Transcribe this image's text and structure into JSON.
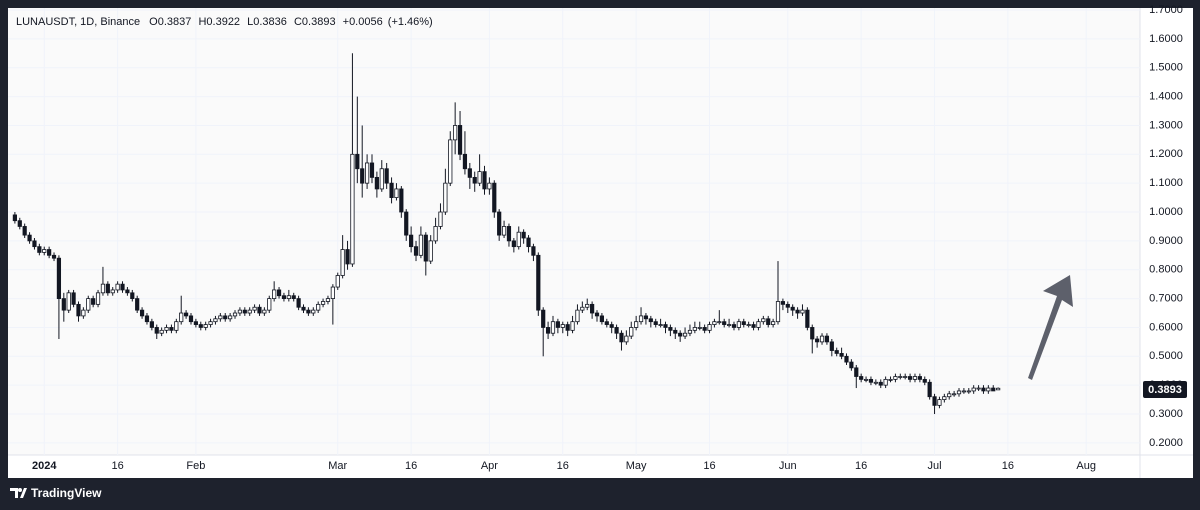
{
  "chart_data": {
    "type": "candlestick",
    "symbol": "LUNAUSDT, 1D, Binance",
    "ohlc_labels": [
      "O",
      "H",
      "L",
      "C"
    ],
    "change": "+0.0056",
    "change_pct": "(+1.46%)",
    "brand": "TradingView",
    "up_color": "#ffffff",
    "down_color": "#131722",
    "border_color": "#131722",
    "xlim": [
      -7,
      224
    ],
    "xticks": [
      {
        "value": 0,
        "label": "2024"
      },
      {
        "value": 15,
        "label": "16"
      },
      {
        "value": 31,
        "label": "Feb"
      },
      {
        "value": 60,
        "label": "Mar"
      },
      {
        "value": 75,
        "label": "16"
      },
      {
        "value": 91,
        "label": "Apr"
      },
      {
        "value": 106,
        "label": "16"
      },
      {
        "value": 121,
        "label": "May"
      },
      {
        "value": 136,
        "label": "16"
      },
      {
        "value": 152,
        "label": "Jun"
      },
      {
        "value": 167,
        "label": "16"
      },
      {
        "value": 182,
        "label": "Jul"
      },
      {
        "value": 197,
        "label": "16"
      },
      {
        "value": 213,
        "label": "Aug"
      }
    ],
    "ylim": [
      0.158,
      1.707
    ],
    "yticks": [
      {
        "value": 0.2,
        "label": "0.2000"
      },
      {
        "value": 0.3,
        "label": "0.3000"
      },
      {
        "value": 0.4,
        "label": "0.4000"
      },
      {
        "value": 0.5,
        "label": "0.5000"
      },
      {
        "value": 0.6,
        "label": "0.6000"
      },
      {
        "value": 0.7,
        "label": "0.7000"
      },
      {
        "value": 0.8,
        "label": "0.8000"
      },
      {
        "value": 0.9,
        "label": "0.9000"
      },
      {
        "value": 1.0,
        "label": "1.0000"
      },
      {
        "value": 1.1,
        "label": "1.1000"
      },
      {
        "value": 1.2,
        "label": "1.2000"
      },
      {
        "value": 1.3,
        "label": "1.3000"
      },
      {
        "value": 1.4,
        "label": "1.4000"
      },
      {
        "value": 1.5,
        "label": "1.5000"
      },
      {
        "value": 1.6,
        "label": "1.6000"
      },
      {
        "value": 1.7,
        "label": "1.7000"
      }
    ],
    "grid": true,
    "x": [
      -6,
      -5,
      -4,
      -3,
      -2,
      -1,
      0,
      1,
      2,
      3,
      4,
      5,
      6,
      7,
      8,
      9,
      10,
      11,
      12,
      13,
      14,
      15,
      16,
      17,
      18,
      19,
      20,
      21,
      22,
      23,
      24,
      25,
      26,
      27,
      28,
      29,
      30,
      31,
      32,
      33,
      34,
      35,
      36,
      37,
      38,
      39,
      40,
      41,
      42,
      43,
      44,
      45,
      46,
      47,
      48,
      49,
      50,
      51,
      52,
      53,
      54,
      55,
      56,
      57,
      58,
      59,
      60,
      61,
      62,
      63,
      64,
      65,
      66,
      67,
      68,
      69,
      70,
      71,
      72,
      73,
      74,
      75,
      76,
      77,
      78,
      79,
      80,
      81,
      82,
      83,
      84,
      85,
      86,
      87,
      88,
      89,
      90,
      91,
      92,
      93,
      94,
      95,
      96,
      97,
      98,
      99,
      100,
      101,
      102,
      103,
      104,
      105,
      106,
      107,
      108,
      109,
      110,
      111,
      112,
      113,
      114,
      115,
      116,
      117,
      118,
      119,
      120,
      121,
      122,
      123,
      124,
      125,
      126,
      127,
      128,
      129,
      130,
      131,
      132,
      133,
      134,
      135,
      136,
      137,
      138,
      139,
      140,
      141,
      142,
      143,
      144,
      145,
      146,
      147,
      148,
      149,
      150,
      151,
      152,
      153,
      154,
      155,
      156,
      157,
      158,
      159,
      160,
      161,
      162,
      163,
      164,
      165,
      166,
      167,
      168,
      169,
      170,
      171,
      172,
      173,
      174,
      175,
      176,
      177,
      178,
      179,
      180,
      181,
      182,
      183,
      184,
      185,
      186,
      187,
      188,
      189,
      190,
      191,
      192,
      193,
      194,
      195
    ],
    "ohlc": [
      [
        0.99,
        1.0,
        0.96,
        0.97
      ],
      [
        0.97,
        0.98,
        0.94,
        0.95
      ],
      [
        0.95,
        0.96,
        0.91,
        0.92
      ],
      [
        0.92,
        0.93,
        0.89,
        0.9
      ],
      [
        0.9,
        0.91,
        0.87,
        0.88
      ],
      [
        0.88,
        0.89,
        0.85,
        0.86
      ],
      [
        0.86,
        0.88,
        0.85,
        0.87
      ],
      [
        0.87,
        0.88,
        0.84,
        0.85
      ],
      [
        0.85,
        0.86,
        0.83,
        0.84
      ],
      [
        0.84,
        0.85,
        0.56,
        0.7
      ],
      [
        0.7,
        0.72,
        0.62,
        0.66
      ],
      [
        0.66,
        0.73,
        0.65,
        0.72
      ],
      [
        0.72,
        0.73,
        0.67,
        0.68
      ],
      [
        0.68,
        0.69,
        0.62,
        0.64
      ],
      [
        0.64,
        0.67,
        0.63,
        0.66
      ],
      [
        0.66,
        0.71,
        0.65,
        0.7
      ],
      [
        0.7,
        0.71,
        0.67,
        0.68
      ],
      [
        0.68,
        0.73,
        0.67,
        0.72
      ],
      [
        0.72,
        0.81,
        0.71,
        0.75
      ],
      [
        0.75,
        0.76,
        0.71,
        0.72
      ],
      [
        0.72,
        0.74,
        0.71,
        0.73
      ],
      [
        0.73,
        0.76,
        0.72,
        0.75
      ],
      [
        0.75,
        0.76,
        0.72,
        0.73
      ],
      [
        0.73,
        0.74,
        0.71,
        0.72
      ],
      [
        0.72,
        0.73,
        0.69,
        0.7
      ],
      [
        0.7,
        0.71,
        0.65,
        0.66
      ],
      [
        0.66,
        0.67,
        0.63,
        0.64
      ],
      [
        0.64,
        0.65,
        0.61,
        0.62
      ],
      [
        0.62,
        0.63,
        0.59,
        0.6
      ],
      [
        0.6,
        0.61,
        0.56,
        0.58
      ],
      [
        0.58,
        0.6,
        0.57,
        0.59
      ],
      [
        0.59,
        0.61,
        0.58,
        0.6
      ],
      [
        0.6,
        0.61,
        0.58,
        0.59
      ],
      [
        0.59,
        0.63,
        0.58,
        0.62
      ],
      [
        0.62,
        0.71,
        0.61,
        0.65
      ],
      [
        0.65,
        0.66,
        0.63,
        0.64
      ],
      [
        0.64,
        0.65,
        0.61,
        0.62
      ],
      [
        0.62,
        0.63,
        0.6,
        0.61
      ],
      [
        0.61,
        0.62,
        0.59,
        0.6
      ],
      [
        0.6,
        0.62,
        0.59,
        0.61
      ],
      [
        0.61,
        0.63,
        0.6,
        0.62
      ],
      [
        0.62,
        0.64,
        0.61,
        0.63
      ],
      [
        0.63,
        0.65,
        0.62,
        0.64
      ],
      [
        0.64,
        0.65,
        0.62,
        0.63
      ],
      [
        0.63,
        0.65,
        0.62,
        0.64
      ],
      [
        0.64,
        0.66,
        0.63,
        0.65
      ],
      [
        0.65,
        0.67,
        0.64,
        0.66
      ],
      [
        0.66,
        0.67,
        0.64,
        0.65
      ],
      [
        0.65,
        0.67,
        0.64,
        0.66
      ],
      [
        0.66,
        0.68,
        0.65,
        0.67
      ],
      [
        0.67,
        0.68,
        0.64,
        0.65
      ],
      [
        0.65,
        0.67,
        0.64,
        0.66
      ],
      [
        0.66,
        0.71,
        0.65,
        0.7
      ],
      [
        0.7,
        0.76,
        0.69,
        0.73
      ],
      [
        0.73,
        0.74,
        0.7,
        0.71
      ],
      [
        0.71,
        0.72,
        0.69,
        0.7
      ],
      [
        0.7,
        0.73,
        0.69,
        0.71
      ],
      [
        0.71,
        0.72,
        0.69,
        0.7
      ],
      [
        0.7,
        0.71,
        0.66,
        0.67
      ],
      [
        0.67,
        0.68,
        0.65,
        0.66
      ],
      [
        0.66,
        0.67,
        0.64,
        0.65
      ],
      [
        0.65,
        0.67,
        0.64,
        0.66
      ],
      [
        0.66,
        0.69,
        0.65,
        0.68
      ],
      [
        0.68,
        0.7,
        0.67,
        0.69
      ],
      [
        0.69,
        0.71,
        0.68,
        0.7
      ],
      [
        0.7,
        0.75,
        0.61,
        0.74
      ],
      [
        0.74,
        0.79,
        0.73,
        0.78
      ],
      [
        0.78,
        0.92,
        0.77,
        0.87
      ],
      [
        0.87,
        0.9,
        0.8,
        0.82
      ],
      [
        0.82,
        1.55,
        0.81,
        1.2
      ],
      [
        1.2,
        1.4,
        1.1,
        1.15
      ],
      [
        1.15,
        1.3,
        1.05,
        1.1
      ],
      [
        1.1,
        1.2,
        1.08,
        1.17
      ],
      [
        1.17,
        1.2,
        1.1,
        1.12
      ],
      [
        1.12,
        1.14,
        1.05,
        1.08
      ],
      [
        1.08,
        1.18,
        1.07,
        1.15
      ],
      [
        1.15,
        1.17,
        1.08,
        1.1
      ],
      [
        1.1,
        1.12,
        1.03,
        1.05
      ],
      [
        1.05,
        1.1,
        1.04,
        1.08
      ],
      [
        1.08,
        1.09,
        0.98,
        1.0
      ],
      [
        1.0,
        1.01,
        0.9,
        0.92
      ],
      [
        0.92,
        0.95,
        0.86,
        0.88
      ],
      [
        0.88,
        0.9,
        0.83,
        0.85
      ],
      [
        0.85,
        0.95,
        0.84,
        0.92
      ],
      [
        0.92,
        0.93,
        0.78,
        0.83
      ],
      [
        0.83,
        0.92,
        0.82,
        0.9
      ],
      [
        0.9,
        0.98,
        0.89,
        0.95
      ],
      [
        0.95,
        1.03,
        0.94,
        1.0
      ],
      [
        1.0,
        1.15,
        0.99,
        1.1
      ],
      [
        1.1,
        1.28,
        1.09,
        1.25
      ],
      [
        1.25,
        1.38,
        1.2,
        1.3
      ],
      [
        1.3,
        1.35,
        1.18,
        1.2
      ],
      [
        1.2,
        1.28,
        1.13,
        1.15
      ],
      [
        1.15,
        1.17,
        1.08,
        1.12
      ],
      [
        1.12,
        1.14,
        1.07,
        1.1
      ],
      [
        1.1,
        1.2,
        1.09,
        1.14
      ],
      [
        1.14,
        1.16,
        1.06,
        1.08
      ],
      [
        1.08,
        1.12,
        1.06,
        1.1
      ],
      [
        1.1,
        1.11,
        0.98,
        1.0
      ],
      [
        1.0,
        1.01,
        0.9,
        0.92
      ],
      [
        0.92,
        0.97,
        0.91,
        0.95
      ],
      [
        0.95,
        0.96,
        0.88,
        0.9
      ],
      [
        0.9,
        0.91,
        0.86,
        0.88
      ],
      [
        0.88,
        0.95,
        0.87,
        0.93
      ],
      [
        0.93,
        0.94,
        0.89,
        0.91
      ],
      [
        0.91,
        0.92,
        0.86,
        0.88
      ],
      [
        0.88,
        0.89,
        0.83,
        0.85
      ],
      [
        0.85,
        0.86,
        0.64,
        0.66
      ],
      [
        0.66,
        0.67,
        0.5,
        0.6
      ],
      [
        0.6,
        0.62,
        0.56,
        0.58
      ],
      [
        0.58,
        0.64,
        0.57,
        0.62
      ],
      [
        0.62,
        0.63,
        0.58,
        0.6
      ],
      [
        0.6,
        0.62,
        0.58,
        0.61
      ],
      [
        0.61,
        0.62,
        0.57,
        0.59
      ],
      [
        0.59,
        0.64,
        0.58,
        0.62
      ],
      [
        0.62,
        0.68,
        0.61,
        0.66
      ],
      [
        0.66,
        0.69,
        0.65,
        0.67
      ],
      [
        0.67,
        0.7,
        0.66,
        0.68
      ],
      [
        0.68,
        0.69,
        0.63,
        0.65
      ],
      [
        0.65,
        0.66,
        0.62,
        0.64
      ],
      [
        0.64,
        0.65,
        0.61,
        0.62
      ],
      [
        0.62,
        0.63,
        0.6,
        0.61
      ],
      [
        0.61,
        0.62,
        0.58,
        0.6
      ],
      [
        0.6,
        0.61,
        0.56,
        0.58
      ],
      [
        0.58,
        0.59,
        0.52,
        0.55
      ],
      [
        0.55,
        0.59,
        0.54,
        0.57
      ],
      [
        0.57,
        0.62,
        0.56,
        0.6
      ],
      [
        0.6,
        0.64,
        0.59,
        0.62
      ],
      [
        0.62,
        0.67,
        0.61,
        0.64
      ],
      [
        0.64,
        0.65,
        0.61,
        0.63
      ],
      [
        0.63,
        0.64,
        0.6,
        0.62
      ],
      [
        0.62,
        0.63,
        0.6,
        0.61
      ],
      [
        0.61,
        0.63,
        0.6,
        0.61
      ],
      [
        0.61,
        0.62,
        0.58,
        0.6
      ],
      [
        0.6,
        0.61,
        0.57,
        0.59
      ],
      [
        0.59,
        0.6,
        0.56,
        0.58
      ],
      [
        0.58,
        0.59,
        0.55,
        0.57
      ],
      [
        0.57,
        0.6,
        0.56,
        0.58
      ],
      [
        0.58,
        0.61,
        0.57,
        0.59
      ],
      [
        0.59,
        0.62,
        0.58,
        0.6
      ],
      [
        0.6,
        0.62,
        0.59,
        0.6
      ],
      [
        0.6,
        0.61,
        0.58,
        0.59
      ],
      [
        0.59,
        0.62,
        0.58,
        0.61
      ],
      [
        0.61,
        0.63,
        0.6,
        0.62
      ],
      [
        0.62,
        0.66,
        0.61,
        0.62
      ],
      [
        0.62,
        0.63,
        0.6,
        0.61
      ],
      [
        0.61,
        0.63,
        0.6,
        0.61
      ],
      [
        0.61,
        0.62,
        0.59,
        0.6
      ],
      [
        0.6,
        0.63,
        0.59,
        0.62
      ],
      [
        0.62,
        0.63,
        0.6,
        0.61
      ],
      [
        0.61,
        0.62,
        0.6,
        0.61
      ],
      [
        0.61,
        0.62,
        0.59,
        0.6
      ],
      [
        0.6,
        0.63,
        0.59,
        0.62
      ],
      [
        0.62,
        0.64,
        0.61,
        0.63
      ],
      [
        0.63,
        0.64,
        0.6,
        0.61
      ],
      [
        0.61,
        0.63,
        0.6,
        0.62
      ],
      [
        0.62,
        0.83,
        0.61,
        0.69
      ],
      [
        0.69,
        0.7,
        0.66,
        0.68
      ],
      [
        0.68,
        0.69,
        0.65,
        0.67
      ],
      [
        0.67,
        0.68,
        0.64,
        0.66
      ],
      [
        0.66,
        0.67,
        0.63,
        0.65
      ],
      [
        0.65,
        0.68,
        0.64,
        0.66
      ],
      [
        0.66,
        0.67,
        0.59,
        0.6
      ],
      [
        0.6,
        0.61,
        0.51,
        0.56
      ],
      [
        0.56,
        0.57,
        0.53,
        0.55
      ],
      [
        0.55,
        0.58,
        0.54,
        0.57
      ],
      [
        0.57,
        0.58,
        0.54,
        0.55
      ],
      [
        0.55,
        0.56,
        0.5,
        0.52
      ],
      [
        0.52,
        0.53,
        0.5,
        0.51
      ],
      [
        0.51,
        0.53,
        0.49,
        0.5
      ],
      [
        0.5,
        0.51,
        0.47,
        0.48
      ],
      [
        0.48,
        0.49,
        0.45,
        0.46
      ],
      [
        0.46,
        0.47,
        0.39,
        0.43
      ],
      [
        0.43,
        0.44,
        0.41,
        0.42
      ],
      [
        0.42,
        0.43,
        0.41,
        0.42
      ],
      [
        0.42,
        0.43,
        0.4,
        0.41
      ],
      [
        0.41,
        0.42,
        0.4,
        0.41
      ],
      [
        0.41,
        0.42,
        0.39,
        0.4
      ],
      [
        0.4,
        0.43,
        0.39,
        0.42
      ],
      [
        0.42,
        0.43,
        0.41,
        0.42
      ],
      [
        0.42,
        0.44,
        0.41,
        0.43
      ],
      [
        0.43,
        0.44,
        0.42,
        0.43
      ],
      [
        0.43,
        0.44,
        0.42,
        0.43
      ],
      [
        0.43,
        0.44,
        0.41,
        0.42
      ],
      [
        0.42,
        0.44,
        0.41,
        0.43
      ],
      [
        0.43,
        0.44,
        0.41,
        0.42
      ],
      [
        0.42,
        0.43,
        0.4,
        0.41
      ],
      [
        0.41,
        0.42,
        0.35,
        0.36
      ],
      [
        0.36,
        0.37,
        0.3,
        0.33
      ],
      [
        0.33,
        0.36,
        0.32,
        0.35
      ],
      [
        0.35,
        0.37,
        0.34,
        0.36
      ],
      [
        0.36,
        0.38,
        0.35,
        0.37
      ],
      [
        0.37,
        0.38,
        0.36,
        0.37
      ],
      [
        0.37,
        0.39,
        0.36,
        0.38
      ],
      [
        0.38,
        0.39,
        0.37,
        0.38
      ],
      [
        0.38,
        0.39,
        0.37,
        0.38
      ],
      [
        0.38,
        0.4,
        0.37,
        0.39
      ],
      [
        0.39,
        0.4,
        0.38,
        0.39
      ],
      [
        0.39,
        0.4,
        0.37,
        0.38
      ],
      [
        0.38,
        0.4,
        0.37,
        0.39
      ],
      [
        0.39,
        0.4,
        0.38,
        0.38
      ],
      [
        0.3837,
        0.3922,
        0.3836,
        0.3893
      ]
    ]
  }
}
